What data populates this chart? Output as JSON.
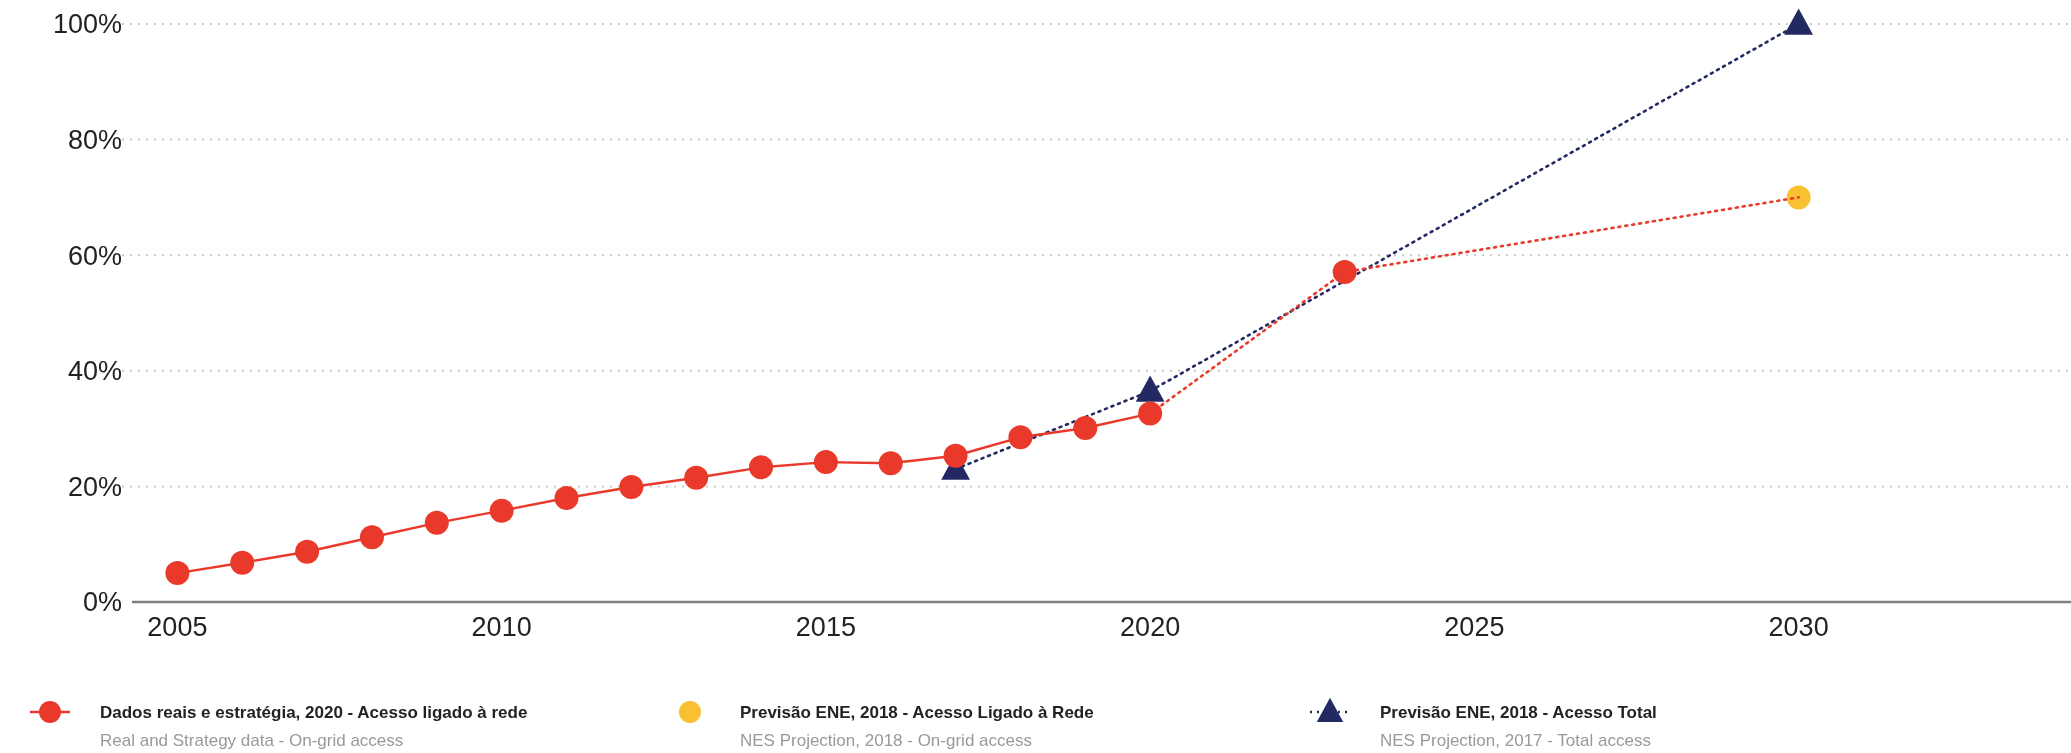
{
  "chart_data": {
    "type": "line",
    "xlim": [
      2004.3,
      2034.2
    ],
    "xticks": [
      2005,
      2010,
      2015,
      2020,
      2025,
      2030
    ],
    "ylim": [
      0,
      100
    ],
    "yticks": [
      {
        "value": 0,
        "label": "0%"
      },
      {
        "value": 20,
        "label": "20%"
      },
      {
        "value": 40,
        "label": "40%"
      },
      {
        "value": 60,
        "label": "60%"
      },
      {
        "value": 80,
        "label": "80%"
      },
      {
        "value": 100,
        "label": "100%"
      }
    ],
    "grid": "y",
    "legend": "bottom",
    "marker": "circle",
    "line_style": "solid",
    "series": [
      {
        "name": "Dados reais e estratégia, 2020 - Acesso ligado à rede\nReal and Strategy data - On-grid access",
        "color": "#e8392a",
        "x": [
          2005,
          2006,
          2007,
          2008,
          2009,
          2010,
          2011,
          2012,
          2013,
          2014,
          2015,
          2016,
          2017,
          2018,
          2019,
          2020
        ],
        "values": [
          5.0,
          6.8,
          8.7,
          11.2,
          13.7,
          15.8,
          18.0,
          19.9,
          21.5,
          23.3,
          24.2,
          24.0,
          25.3,
          28.5,
          30.1,
          32.6
        ]
      },
      {
        "color": "#e8392a",
        "type": "line",
        "line_style": "dotted",
        "marker": "none",
        "x": [
          2020,
          2023,
          2030
        ],
        "values": [
          32.6,
          57.1,
          70
        ]
      },
      {
        "color": "#e8392a",
        "type": "scatter",
        "marker": "circle",
        "x": [
          2023
        ],
        "values": [
          57.1
        ]
      },
      {
        "name": "Previsão ENE, 2018 - Acesso Ligado à Rede\nNES Projection, 2018 - On-grid access",
        "color": "#f9c032",
        "type": "scatter",
        "marker": "circle",
        "x": [
          2030
        ],
        "values": [
          70
        ]
      },
      {
        "name": "Previsão ENE, 2018 - Acesso Total\nNES Projection, 2017 - Total access",
        "color": "#232a63",
        "type": "line",
        "line_style": "dotted",
        "marker": "triangle",
        "x": [
          2017,
          2020,
          2030
        ],
        "values": [
          23,
          36.5,
          100
        ]
      }
    ]
  }
}
